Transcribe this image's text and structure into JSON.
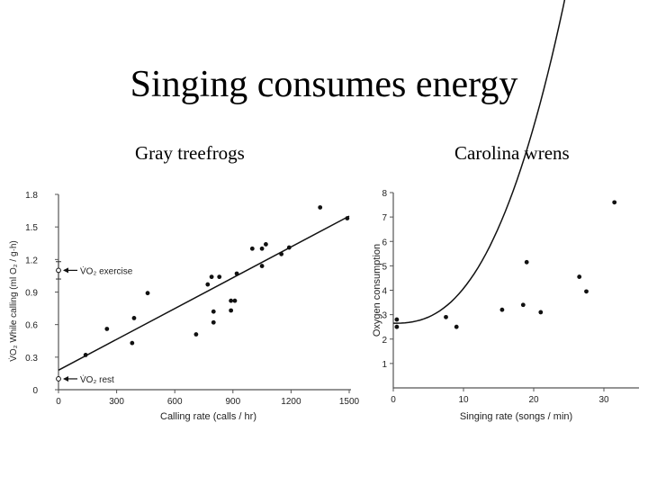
{
  "slide": {
    "title": "Singing consumes energy",
    "left_subtitle": "Gray treefrogs",
    "right_subtitle": "Carolina wrens"
  },
  "chart_data": [
    {
      "type": "scatter",
      "title": "Gray treefrogs",
      "xlabel": "Calling rate (calls / hr)",
      "ylabel": "V̇O₂ While calling (ml O₂ / g·h)",
      "xlim": [
        0,
        1500
      ],
      "ylim": [
        0,
        1.8
      ],
      "x_ticks": [
        "0",
        "300",
        "600",
        "900",
        "1200",
        "1500"
      ],
      "y_ticks": [
        "0",
        "0.3",
        "0.6",
        "0.9",
        "1.2",
        "1.5",
        "1.8"
      ],
      "grid": false,
      "points": [
        {
          "x": 140,
          "y": 0.32
        },
        {
          "x": 250,
          "y": 0.56
        },
        {
          "x": 380,
          "y": 0.43
        },
        {
          "x": 390,
          "y": 0.66
        },
        {
          "x": 460,
          "y": 0.89
        },
        {
          "x": 710,
          "y": 0.51
        },
        {
          "x": 770,
          "y": 0.97
        },
        {
          "x": 790,
          "y": 1.04
        },
        {
          "x": 800,
          "y": 0.62
        },
        {
          "x": 800,
          "y": 0.72
        },
        {
          "x": 830,
          "y": 1.04
        },
        {
          "x": 890,
          "y": 0.82
        },
        {
          "x": 890,
          "y": 0.73
        },
        {
          "x": 910,
          "y": 0.82
        },
        {
          "x": 920,
          "y": 1.07
        },
        {
          "x": 1000,
          "y": 1.3
        },
        {
          "x": 1050,
          "y": 1.3
        },
        {
          "x": 1050,
          "y": 1.14
        },
        {
          "x": 1070,
          "y": 1.34
        },
        {
          "x": 1150,
          "y": 1.25
        },
        {
          "x": 1190,
          "y": 1.31
        },
        {
          "x": 1350,
          "y": 1.68
        },
        {
          "x": 1490,
          "y": 1.58
        }
      ],
      "fit_line": {
        "x": [
          0,
          1500
        ],
        "y": [
          0.18,
          1.6
        ]
      },
      "reference_points": [
        {
          "label": "V̇O₂ exercise",
          "x": 0,
          "y": 1.1,
          "error": [
            1.02,
            1.18
          ]
        },
        {
          "label": "V̇O₂ rest",
          "x": 0,
          "y": 0.1
        }
      ]
    },
    {
      "type": "scatter",
      "title": "Carolina wrens",
      "xlabel": "Singing rate (songs / min)",
      "ylabel": "Oxygen consumption",
      "xlim": [
        0,
        35
      ],
      "ylim": [
        0,
        8
      ],
      "x_ticks": [
        "0",
        "10",
        "20",
        "30"
      ],
      "y_ticks": [
        "1",
        "2",
        "3",
        "4",
        "5",
        "6",
        "7",
        "8"
      ],
      "grid": false,
      "points": [
        {
          "x": 0.5,
          "y": 2.8
        },
        {
          "x": 0.5,
          "y": 2.5
        },
        {
          "x": 7.5,
          "y": 2.9
        },
        {
          "x": 9,
          "y": 2.5
        },
        {
          "x": 15.5,
          "y": 3.2
        },
        {
          "x": 18.5,
          "y": 3.4
        },
        {
          "x": 19,
          "y": 5.15
        },
        {
          "x": 21,
          "y": 3.1
        },
        {
          "x": 26.5,
          "y": 4.55
        },
        {
          "x": 27.5,
          "y": 3.95
        },
        {
          "x": 31.5,
          "y": 7.6
        }
      ],
      "fit_curve": {
        "x0": 0,
        "x1": 33,
        "a": 2.65,
        "b": 0.0045,
        "p": 2.5
      }
    }
  ]
}
